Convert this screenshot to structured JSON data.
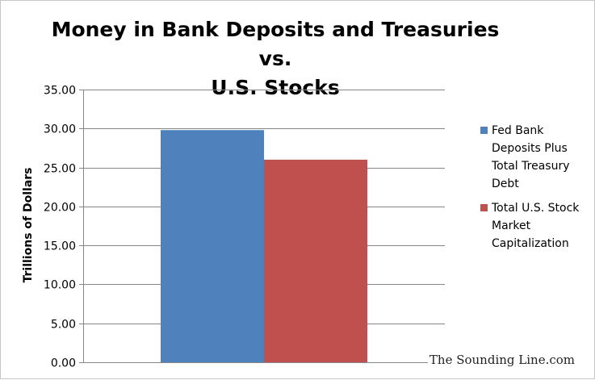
{
  "chart_data": {
    "type": "bar",
    "title_lines": [
      "Money in Bank Deposits and Treasuries vs.",
      "U.S. Stocks"
    ],
    "ylabel": "Trillions of Dollars",
    "xlabel": "",
    "ylim": [
      0,
      35
    ],
    "yticks": [
      "0.00",
      "5.00",
      "10.00",
      "15.00",
      "20.00",
      "25.00",
      "30.00",
      "35.00"
    ],
    "grid": true,
    "legend_position": "right",
    "series": [
      {
        "name": "Fed Bank Deposits Plus Total Treasury Debt",
        "value": 29.8,
        "color": "#4f81bd",
        "legend_lines": [
          "Fed Bank",
          "Deposits Plus",
          "Total Treasury",
          "Debt"
        ]
      },
      {
        "name": "Total U.S. Stock Market Capitalization",
        "value": 26.0,
        "color": "#c0504d",
        "legend_lines": [
          "Total U.S. Stock",
          "Market",
          "Capitalization"
        ]
      }
    ]
  },
  "watermark": "The Sounding Line.com"
}
